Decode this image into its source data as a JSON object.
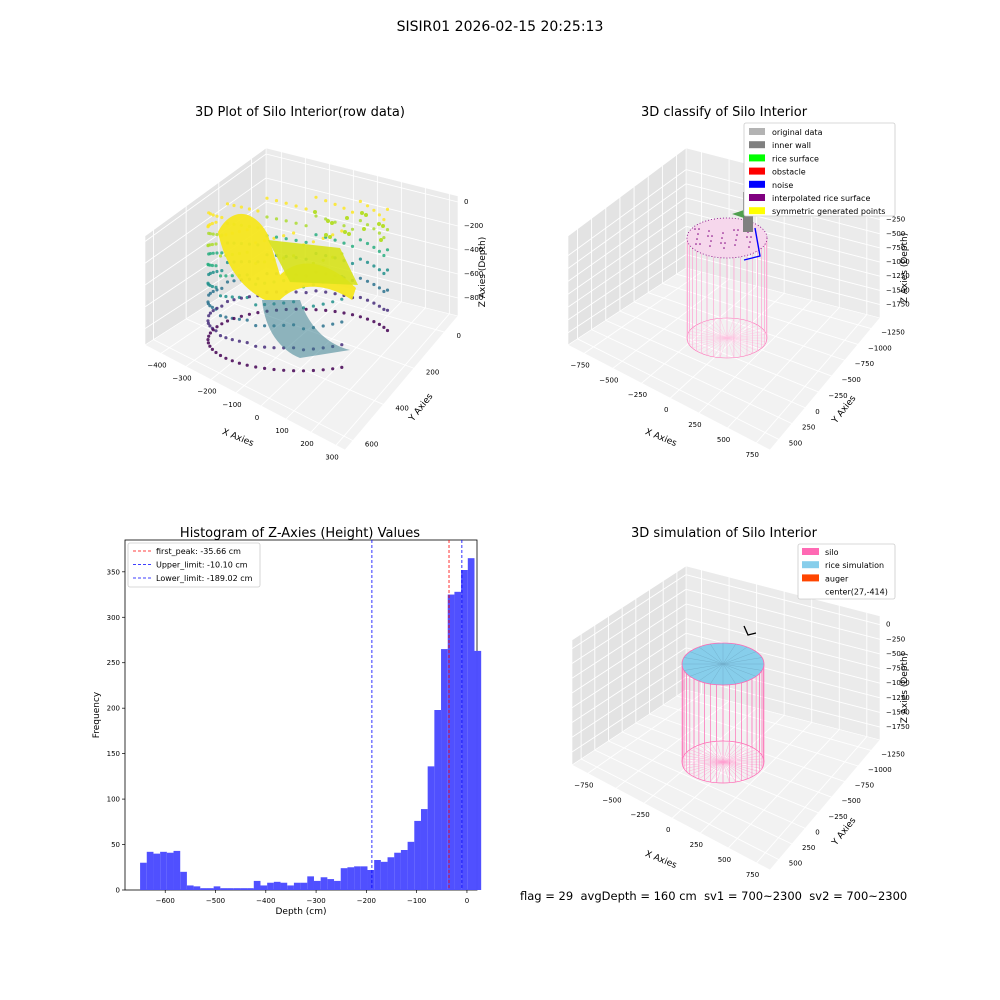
{
  "figure_title": "SISIR01 2026-02-15 20:25:13",
  "status": {
    "flag": "flag = 29",
    "avg_depth": "avgDepth = 160 cm",
    "sv1": "sv1 = 700~2300",
    "sv2": "sv2 = 700~2300"
  },
  "colors": {
    "original_data": "#b3b3b3",
    "inner_wall": "#808080",
    "rice_surface": "#00ff00",
    "obstacle": "#ff0000",
    "noise": "#0000ff",
    "interpolated_rice_surface": "#800080",
    "symmetric_generated_points": "#ffff00",
    "silo": "#ff69b4",
    "rice_simulation": "#87ceeb",
    "auger": "#ff4500",
    "hist_bar": "#4d4dff",
    "first_peak_line": "#ff0000",
    "limit_line": "#0000ff"
  },
  "chart_data": [
    {
      "type": "scatter",
      "projection": "3d",
      "title": "3D Plot of Silo Interior(row data)",
      "xlabel": "X Axies",
      "ylabel": "Y Axies",
      "zlabel": "Z Axies (Depth)",
      "x_ticks": [
        "−400",
        "−300",
        "−200",
        "−100",
        "0",
        "100",
        "200",
        "300"
      ],
      "y_ticks": [
        "0",
        "200",
        "400",
        "600"
      ],
      "z_ticks": [
        "0",
        "−200",
        "−400",
        "−600",
        "−800"
      ],
      "colormap": "viridis"
    },
    {
      "type": "scatter",
      "projection": "3d",
      "title": "3D classify of Silo Interior",
      "xlabel": "X Axies",
      "ylabel": "Y Axies",
      "zlabel": "Z Axies (Depth)",
      "x_ticks": [
        "−750",
        "−500",
        "−250",
        "0",
        "250",
        "500",
        "750"
      ],
      "y_ticks": [
        "−1250",
        "−1000",
        "−750",
        "−500",
        "−250",
        "0",
        "250",
        "500"
      ],
      "z_ticks": [
        "−250",
        "−500",
        "−750",
        "−1000",
        "−1250",
        "−1500",
        "−1750"
      ],
      "legend": [
        "original data",
        "inner wall",
        "rice surface",
        "obstacle",
        "noise",
        "interpolated rice surface",
        "symmetric generated points"
      ],
      "legend_position": "top-right"
    },
    {
      "type": "bar",
      "title": "Histogram of Z-Axies (Height) Values",
      "xlabel": "Depth (cm)",
      "ylabel": "Frequency",
      "xlim": [
        -680,
        20
      ],
      "ylim": [
        0,
        385
      ],
      "x_ticks": [
        -600,
        -500,
        -400,
        -300,
        -200,
        -100,
        0
      ],
      "x_tick_labels": [
        "−600",
        "−500",
        "−400",
        "−300",
        "−200",
        "−100",
        "0"
      ],
      "y_ticks": [
        0,
        50,
        100,
        150,
        200,
        250,
        300,
        350
      ],
      "bin_start": -650,
      "bin_width": 13.3,
      "values": [
        30,
        42,
        40,
        42,
        41,
        43,
        20,
        5,
        4,
        2,
        2,
        4,
        2,
        2,
        2,
        2,
        2,
        10,
        5,
        8,
        9,
        8,
        5,
        8,
        8,
        15,
        10,
        14,
        12,
        10,
        24,
        25,
        26,
        26,
        22,
        33,
        31,
        36,
        41,
        44,
        53,
        76,
        89,
        136,
        198,
        265,
        325,
        328,
        352,
        365,
        263
      ],
      "vlines": [
        {
          "x": -35.66,
          "label": "first_peak: -35.66 cm",
          "color": "#ff0000"
        },
        {
          "x": -10.1,
          "label": "Upper_limit: -10.10 cm",
          "color": "#0000ff"
        },
        {
          "x": -189.02,
          "label": "Lower_limit: -189.02 cm",
          "color": "#0000ff"
        }
      ],
      "legend_position": "top-left"
    },
    {
      "type": "scatter",
      "projection": "3d",
      "title": "3D simulation of Silo Interior",
      "xlabel": "X Axies",
      "ylabel": "Y Axies",
      "zlabel": "Z Axies (Depth)",
      "x_ticks": [
        "−750",
        "−500",
        "−250",
        "0",
        "250",
        "500",
        "750"
      ],
      "y_ticks": [
        "−1250",
        "−1000",
        "−750",
        "−500",
        "−250",
        "0",
        "250",
        "500"
      ],
      "z_ticks": [
        "0",
        "−250",
        "−500",
        "−750",
        "−1000",
        "−1250",
        "−1500",
        "−1750"
      ],
      "legend": [
        "silo",
        "rice simulation",
        "auger",
        "center(27,-414)"
      ],
      "legend_position": "top-right"
    }
  ]
}
